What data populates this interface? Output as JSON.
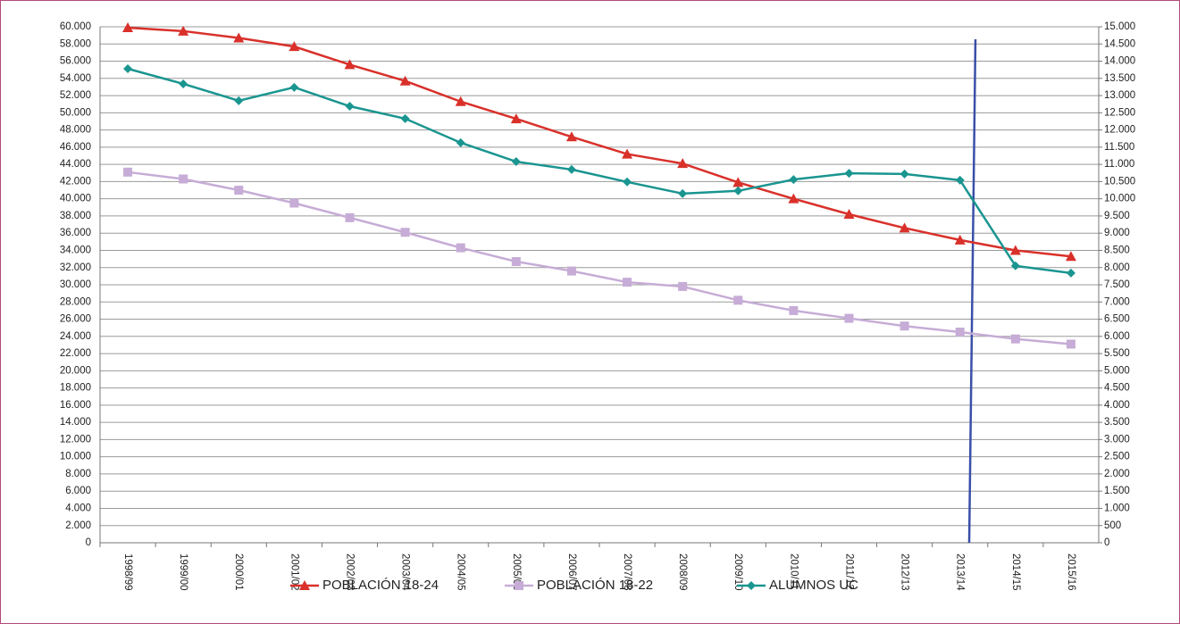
{
  "chart_data": {
    "type": "line",
    "categories": [
      "1998/99",
      "1999/00",
      "2000/01",
      "2001/02",
      "2002/03",
      "2003/04",
      "2004/05",
      "2005/06",
      "2006/07",
      "2007/08",
      "2008/09",
      "2009/10",
      "2010/11",
      "2011/12",
      "2012/13",
      "2013/14",
      "2014/15",
      "2015/16"
    ],
    "series": [
      {
        "name": "POBLACIÓN 18-24",
        "color": "#d9302a",
        "marker": "triangle",
        "values": [
          59900,
          59500,
          58700,
          57700,
          55600,
          53700,
          51300,
          49300,
          47200,
          45200,
          44100,
          41900,
          40000,
          38200,
          36600,
          35200,
          34000,
          33300
        ]
      },
      {
        "name": "POBLACIÓN 18-22",
        "color": "#c6acd6",
        "marker": "square",
        "values": [
          43100,
          42300,
          41000,
          39500,
          37800,
          36100,
          34300,
          32700,
          31600,
          30300,
          29800,
          28200,
          27000,
          26100,
          25200,
          24500,
          23700,
          23100
        ]
      },
      {
        "name": "ALUMNOS UC",
        "color": "#1a9590",
        "marker": "diamond",
        "axis": "y2",
        "values": [
          13780,
          13340,
          12850,
          13240,
          12690,
          12330,
          11630,
          11080,
          10850,
          10490,
          10150,
          10230,
          10560,
          10740,
          10720,
          10540,
          8050,
          7840
        ]
      }
    ],
    "ylim": [
      0,
      60000
    ],
    "yticks": [
      0,
      {
        "value": 2000,
        "label": "2.000"
      },
      {
        "value": 4000,
        "label": "4.000"
      },
      {
        "value": 6000,
        "label": "6.000"
      },
      {
        "value": 8000,
        "label": "8.000"
      },
      {
        "value": 10000,
        "label": "10.000"
      },
      {
        "value": 12000,
        "label": "12.000"
      },
      {
        "value": 14000,
        "label": "14.000"
      },
      {
        "value": 16000,
        "label": "16.000"
      },
      {
        "value": 18000,
        "label": "18.000"
      },
      {
        "value": 20000,
        "label": "20.000"
      },
      {
        "value": 22000,
        "label": "22.000"
      },
      {
        "value": 24000,
        "label": "24.000"
      },
      {
        "value": 26000,
        "label": "26.000"
      },
      {
        "value": 28000,
        "label": "28.000"
      },
      {
        "value": 30000,
        "label": "30.000"
      },
      {
        "value": 32000,
        "label": "32.000"
      },
      {
        "value": 34000,
        "label": "34.000"
      },
      {
        "value": 36000,
        "label": "36.000"
      },
      {
        "value": 38000,
        "label": "38.000"
      },
      {
        "value": 40000,
        "label": "40.000"
      },
      {
        "value": 42000,
        "label": "42.000"
      },
      {
        "value": 44000,
        "label": "44.000"
      },
      {
        "value": 46000,
        "label": "46.000"
      },
      {
        "value": 48000,
        "label": "48.000"
      },
      {
        "value": 50000,
        "label": "50.000"
      },
      {
        "value": 52000,
        "label": "52.000"
      },
      {
        "value": 54000,
        "label": "54.000"
      },
      {
        "value": 56000,
        "label": "56.000"
      },
      {
        "value": 58000,
        "label": "58.000"
      },
      {
        "value": 60000,
        "label": "60.000"
      }
    ],
    "y2lim": [
      0,
      15000
    ],
    "y2ticks": [
      0,
      500,
      {
        "value": 1000,
        "label": "1.000"
      },
      {
        "value": 1500,
        "label": "1.500"
      },
      {
        "value": 2000,
        "label": "2.000"
      },
      {
        "value": 2500,
        "label": "2.500"
      },
      {
        "value": 3000,
        "label": "3.000"
      },
      {
        "value": 3500,
        "label": "3.500"
      },
      {
        "value": 4000,
        "label": "4.000"
      },
      {
        "value": 4500,
        "label": "4.500"
      },
      {
        "value": 5000,
        "label": "5.000"
      },
      {
        "value": 5500,
        "label": "5.500"
      },
      {
        "value": 6000,
        "label": "6.000"
      },
      {
        "value": 6500,
        "label": "6.500"
      },
      {
        "value": 7000,
        "label": "7.000"
      },
      {
        "value": 7500,
        "label": "7.500"
      },
      {
        "value": 8000,
        "label": "8.000"
      },
      {
        "value": 8500,
        "label": "8.500"
      },
      {
        "value": 9000,
        "label": "9.000"
      },
      {
        "value": 9500,
        "label": "9.500"
      },
      {
        "value": 10000,
        "label": "10.000"
      },
      {
        "value": 10500,
        "label": "10.500"
      },
      {
        "value": 11000,
        "label": "11.000"
      },
      {
        "value": 11500,
        "label": "11.500"
      },
      {
        "value": 12000,
        "label": "12.000"
      },
      {
        "value": 12500,
        "label": "12.500"
      },
      {
        "value": 13000,
        "label": "13.000"
      },
      {
        "value": 13500,
        "label": "13.500"
      },
      {
        "value": 14000,
        "label": "14.000"
      },
      {
        "value": 14500,
        "label": "14.500"
      },
      {
        "value": 15000,
        "label": "15.000"
      }
    ],
    "grid": true,
    "legend": "bottom"
  }
}
